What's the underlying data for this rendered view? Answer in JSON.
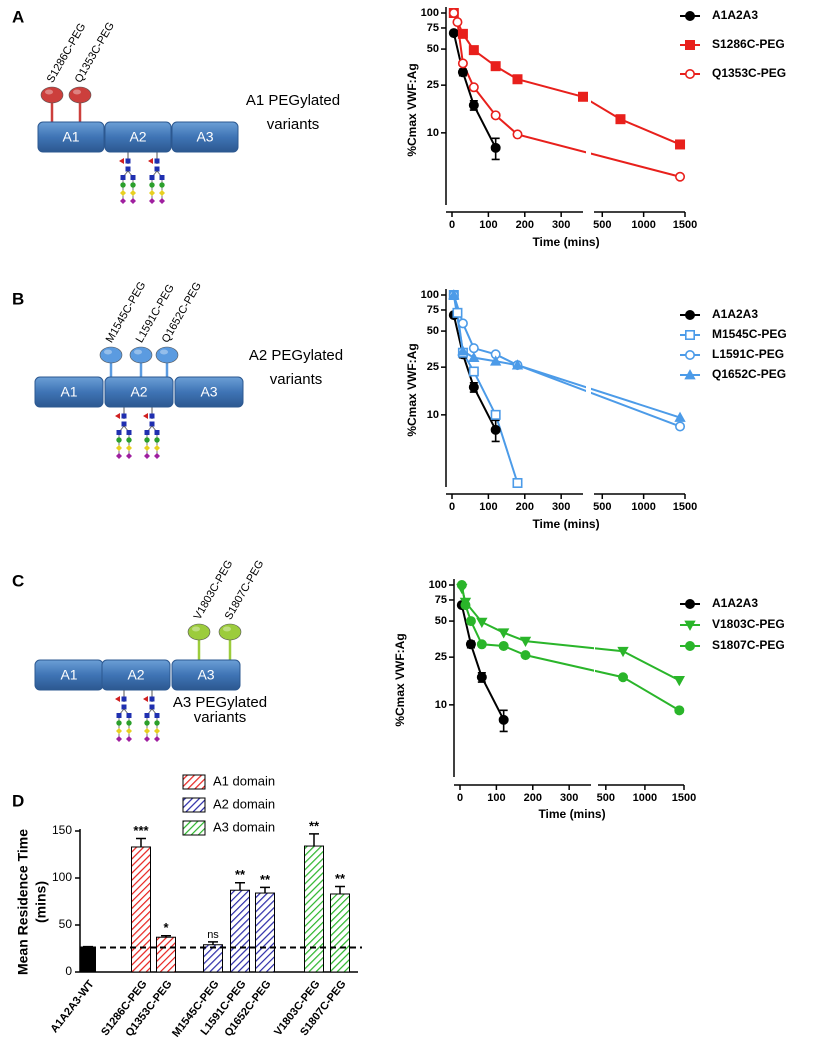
{
  "panel_labels": [
    "A",
    "B",
    "C",
    "D"
  ],
  "diagrams": [
    {
      "domains": [
        "A1",
        "A2",
        "A3"
      ],
      "sites": [
        "S1286C-PEG",
        "Q1353C-PEG"
      ],
      "site_color": "#cc3f3c",
      "caption": [
        "A1 PEGylated",
        "variants"
      ]
    },
    {
      "domains": [
        "A1",
        "A2",
        "A3"
      ],
      "sites": [
        "M1545C-PEG",
        "L1591C-PEG",
        "Q1652C-PEG"
      ],
      "site_color": "#5b9be0",
      "caption": [
        "A2 PEGylated",
        "variants"
      ]
    },
    {
      "domains": [
        "A1",
        "A2",
        "A3"
      ],
      "sites": [
        "V1803C-PEG",
        "S1807C-PEG"
      ],
      "site_color": "#9ccc3c",
      "caption": [
        "A3 PEGylated",
        "variants"
      ]
    }
  ],
  "chart_data": [
    {
      "type": "line",
      "ylabel": "%Cmax VWF:Ag",
      "xlabel": "Time (mins)",
      "yscale": "log",
      "ylim": [
        2.5,
        100
      ],
      "yticks": [
        10,
        25,
        50,
        75,
        100
      ],
      "xlim": [
        [
          0,
          360
        ],
        [
          400,
          1500
        ]
      ],
      "xticks": [
        0,
        100,
        200,
        300,
        500,
        1000,
        1500
      ],
      "series": [
        {
          "name": "A1A2A3",
          "color": "#000000",
          "marker": "circle",
          "x": [
            5,
            30,
            60,
            120
          ],
          "values": [
            68,
            32,
            17,
            7.5
          ],
          "errors": [
            null,
            2,
            1.5,
            1.5
          ]
        },
        {
          "name": "S1286C-PEG",
          "color": "#e8201c",
          "marker": "square",
          "x": [
            5,
            30,
            60,
            120,
            180,
            360,
            720,
            1440
          ],
          "values": [
            100,
            67,
            49,
            36,
            28,
            20,
            13,
            8
          ]
        },
        {
          "name": "Q1353C-PEG",
          "color": "#e8201c",
          "marker": "circle-open",
          "x": [
            5,
            15,
            30,
            60,
            120,
            180,
            1440
          ],
          "values": [
            100,
            84,
            38,
            24,
            14,
            9.7,
            4.3
          ]
        }
      ]
    },
    {
      "type": "line",
      "ylabel": "%Cmax VWF:Ag",
      "xlabel": "Time (mins)",
      "yscale": "log",
      "ylim": [
        2.5,
        100
      ],
      "yticks": [
        10,
        25,
        50,
        75,
        100
      ],
      "xlim": [
        [
          0,
          360
        ],
        [
          400,
          1500
        ]
      ],
      "xticks": [
        0,
        100,
        200,
        300,
        500,
        1000,
        1500
      ],
      "series": [
        {
          "name": "A1A2A3",
          "color": "#000000",
          "marker": "circle",
          "x": [
            5,
            30,
            60,
            120
          ],
          "values": [
            68,
            32,
            17,
            7.5
          ],
          "errors": [
            null,
            2,
            1.5,
            1.5
          ]
        },
        {
          "name": "M1545C-PEG",
          "color": "#4c9be8",
          "marker": "square-open",
          "x": [
            5,
            15,
            30,
            60,
            120,
            180
          ],
          "values": [
            100,
            71,
            33,
            23,
            10,
            2.7
          ]
        },
        {
          "name": "L1591C-PEG",
          "color": "#4c9be8",
          "marker": "circle-open",
          "x": [
            5,
            30,
            60,
            120,
            180,
            1440
          ],
          "values": [
            100,
            58,
            36,
            32,
            26,
            8
          ]
        },
        {
          "name": "Q1652C-PEG",
          "color": "#4c9be8",
          "marker": "triangle",
          "x": [
            5,
            30,
            60,
            120,
            180,
            1440
          ],
          "values": [
            100,
            34,
            30,
            28,
            26,
            9.5
          ]
        }
      ]
    },
    {
      "type": "line",
      "ylabel": "%Cmax VWF:Ag",
      "xlabel": "Time (mins)",
      "yscale": "log",
      "ylim": [
        2.5,
        100
      ],
      "yticks": [
        10,
        25,
        50,
        75,
        100
      ],
      "xlim": [
        [
          0,
          360
        ],
        [
          400,
          1500
        ]
      ],
      "xticks": [
        0,
        100,
        200,
        300,
        500,
        1000,
        1500
      ],
      "series": [
        {
          "name": "A1A2A3",
          "color": "#000000",
          "marker": "circle",
          "x": [
            5,
            30,
            60,
            120
          ],
          "values": [
            68,
            32,
            17,
            7.5
          ],
          "errors": [
            null,
            2,
            1.5,
            1.5
          ]
        },
        {
          "name": "V1803C-PEG",
          "color": "#2ab52a",
          "marker": "triangle-down",
          "x": [
            5,
            15,
            60,
            120,
            180,
            720,
            1440
          ],
          "values": [
            94,
            72,
            49,
            40,
            34,
            28,
            16
          ]
        },
        {
          "name": "S1807C-PEG",
          "color": "#2ab52a",
          "marker": "circle",
          "x": [
            5,
            15,
            30,
            60,
            120,
            180,
            720,
            1440
          ],
          "values": [
            100,
            68,
            50,
            32,
            31,
            26,
            17,
            9
          ]
        }
      ]
    },
    {
      "type": "bar",
      "ylabel": [
        "Mean Residence Time",
        "(mins)"
      ],
      "categories": [
        "A1A2A3-WT",
        "S1286C-PEG",
        "Q1353C-PEG",
        "M1545C-PEG",
        "L1591C-PEG",
        "Q1652C-PEG",
        "V1803C-PEG",
        "S1807C-PEG"
      ],
      "values": [
        26,
        133,
        37,
        29,
        87,
        84,
        134,
        83
      ],
      "errors": [
        1,
        9,
        1.5,
        3,
        8,
        6,
        13,
        8
      ],
      "annotations": [
        null,
        "***",
        "*",
        "ns",
        "**",
        "**",
        "**",
        "**"
      ],
      "bar_group": [
        null,
        0,
        0,
        1,
        1,
        1,
        2,
        2
      ],
      "base_color": "#000000",
      "groups": [
        {
          "name": "A1 domain",
          "color": "#e8201c"
        },
        {
          "name": "A2 domain",
          "color": "#2a2aa8"
        },
        {
          "name": "A3 domain",
          "color": "#2ab52a"
        }
      ],
      "reference_line": 26,
      "ylim": [
        0,
        150
      ],
      "yticks": [
        0,
        50,
        100,
        150
      ]
    }
  ]
}
